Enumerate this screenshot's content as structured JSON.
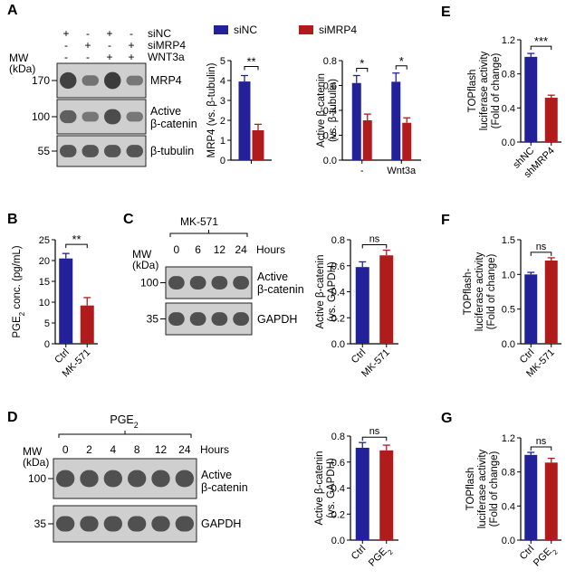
{
  "panel_letters": [
    "A",
    "B",
    "C",
    "D",
    "E",
    "F",
    "G"
  ],
  "colors": {
    "blue": "#23219a",
    "red": "#b01c1c",
    "blot_bg": "#cfcfcf",
    "band": "#2a2a2a"
  },
  "blot_A": {
    "treatments": [
      {
        "label": "siNC",
        "signs": [
          "+",
          "-",
          "+",
          "-"
        ]
      },
      {
        "label": "siMRP4",
        "signs": [
          "-",
          "+",
          "-",
          "+"
        ]
      },
      {
        "label": "WNT3a",
        "signs": [
          "-",
          "-",
          "+",
          "+"
        ]
      }
    ],
    "mw_title": "MW\n(kDa)",
    "rows": [
      {
        "mw": "170",
        "label": "MRP4",
        "intensity": [
          0.85,
          0.35,
          0.9,
          0.3
        ]
      },
      {
        "mw": "100",
        "label": "Active\nβ-catenin",
        "intensity": [
          0.55,
          0.3,
          0.75,
          0.3
        ]
      },
      {
        "mw": "55",
        "label": "β-tubulin",
        "intensity": [
          0.65,
          0.65,
          0.65,
          0.65
        ]
      }
    ]
  },
  "blot_C": {
    "group": "MK-571",
    "mw_title": "MW\n(kDa)",
    "lanes": [
      "0",
      "6",
      "12",
      "24"
    ],
    "lane_unit": "Hours",
    "rows": [
      {
        "mw": "100",
        "label": "Active\nβ-catenin"
      },
      {
        "mw": "35",
        "label": "GAPDH"
      }
    ]
  },
  "blot_D": {
    "group": "PGE2",
    "mw_title": "MW\n(kDa)",
    "lanes": [
      "0",
      "2",
      "4",
      "8",
      "12",
      "24"
    ],
    "lane_unit": "Hours",
    "rows": [
      {
        "mw": "100",
        "label": "Active\nβ-catenin"
      },
      {
        "mw": "35",
        "label": "GAPDH"
      }
    ]
  },
  "chart_data": [
    {
      "panel": "A",
      "type": "bar",
      "legend": [
        "siNC",
        "siMRP4"
      ],
      "categories": [
        ""
      ],
      "series": [
        {
          "name": "siNC",
          "values": [
            3.95
          ],
          "errors": [
            0.3
          ]
        },
        {
          "name": "siMRP4",
          "values": [
            1.5
          ],
          "errors": [
            0.3
          ]
        }
      ],
      "ylabel": "MRP4 (vs. β-tubulin)",
      "ylim": [
        0,
        5
      ],
      "yticks": [
        "0",
        "1",
        "2",
        "3",
        "4",
        "5"
      ],
      "significance": [
        "**"
      ]
    },
    {
      "panel": "A",
      "type": "bar",
      "categories": [
        "-",
        "Wnt3a"
      ],
      "series": [
        {
          "name": "siNC",
          "values": [
            0.62,
            0.63
          ],
          "errors": [
            0.06,
            0.07
          ]
        },
        {
          "name": "siMRP4",
          "values": [
            0.32,
            0.3
          ],
          "errors": [
            0.05,
            0.04
          ]
        }
      ],
      "ylabel": "Active β-catenin\n(vs. β-tubulin)",
      "ylim": [
        0,
        0.8
      ],
      "yticks": [
        "0.0",
        "0.2",
        "0.4",
        "0.6",
        "0.8"
      ],
      "significance": [
        "*",
        "*"
      ]
    },
    {
      "panel": "B",
      "type": "bar",
      "categories": [
        "Ctrl",
        "MK-571"
      ],
      "values": [
        20.5,
        9.2
      ],
      "errors": [
        1.2,
        1.9
      ],
      "ylabel": "PGE2 conc. (pg/mL)",
      "ylim": [
        0,
        25
      ],
      "yticks": [
        "0",
        "5",
        "10",
        "15",
        "20",
        "25"
      ],
      "significance": [
        "**"
      ]
    },
    {
      "panel": "C",
      "type": "bar",
      "categories": [
        "Ctrl",
        "MK-571"
      ],
      "values": [
        0.59,
        0.68
      ],
      "errors": [
        0.04,
        0.04
      ],
      "ylabel": "Active β-catenin\n(vs. GAPDH)",
      "ylim": [
        0,
        0.8
      ],
      "yticks": [
        "0.0",
        "0.2",
        "0.4",
        "0.6",
        "0.8"
      ],
      "significance": [
        "ns"
      ]
    },
    {
      "panel": "D",
      "type": "bar",
      "categories": [
        "Ctrl",
        "PGE2"
      ],
      "values": [
        0.71,
        0.69
      ],
      "errors": [
        0.04,
        0.04
      ],
      "ylabel": "Active β-catenin\n(vs. GAPDH)",
      "ylim": [
        0,
        0.8
      ],
      "yticks": [
        "0.0",
        "0.2",
        "0.4",
        "0.6",
        "0.8"
      ],
      "significance": [
        "ns"
      ]
    },
    {
      "panel": "E",
      "type": "bar",
      "categories": [
        "shNC",
        "shMRP4"
      ],
      "values": [
        1.0,
        0.52
      ],
      "errors": [
        0.04,
        0.03
      ],
      "ylabel": "TOPflash\nluciferase activity\n(Fold of change)",
      "ylim": [
        0,
        1.2
      ],
      "yticks": [
        "0.0",
        "0.4",
        "0.8",
        "1.2"
      ],
      "significance": [
        "***"
      ]
    },
    {
      "panel": "F",
      "type": "bar",
      "categories": [
        "Ctrl",
        "MK-571"
      ],
      "values": [
        1.0,
        1.2
      ],
      "errors": [
        0.03,
        0.04
      ],
      "ylabel": "TOPflash-\nluciferase activity\n(Fold of change)",
      "ylim": [
        0,
        1.5
      ],
      "yticks": [
        "0.0",
        "0.5",
        "1.0",
        "1.5"
      ],
      "significance": [
        "ns"
      ]
    },
    {
      "panel": "G",
      "type": "bar",
      "categories": [
        "Ctrl",
        "PGE2"
      ],
      "values": [
        1.0,
        0.91
      ],
      "errors": [
        0.03,
        0.05
      ],
      "ylabel": "TOPflash\nluciferase activity\n(Fold of change)",
      "ylim": [
        0,
        1.2
      ],
      "yticks": [
        "0.0",
        "0.4",
        "0.8",
        "1.2"
      ],
      "significance": [
        "ns"
      ]
    }
  ]
}
